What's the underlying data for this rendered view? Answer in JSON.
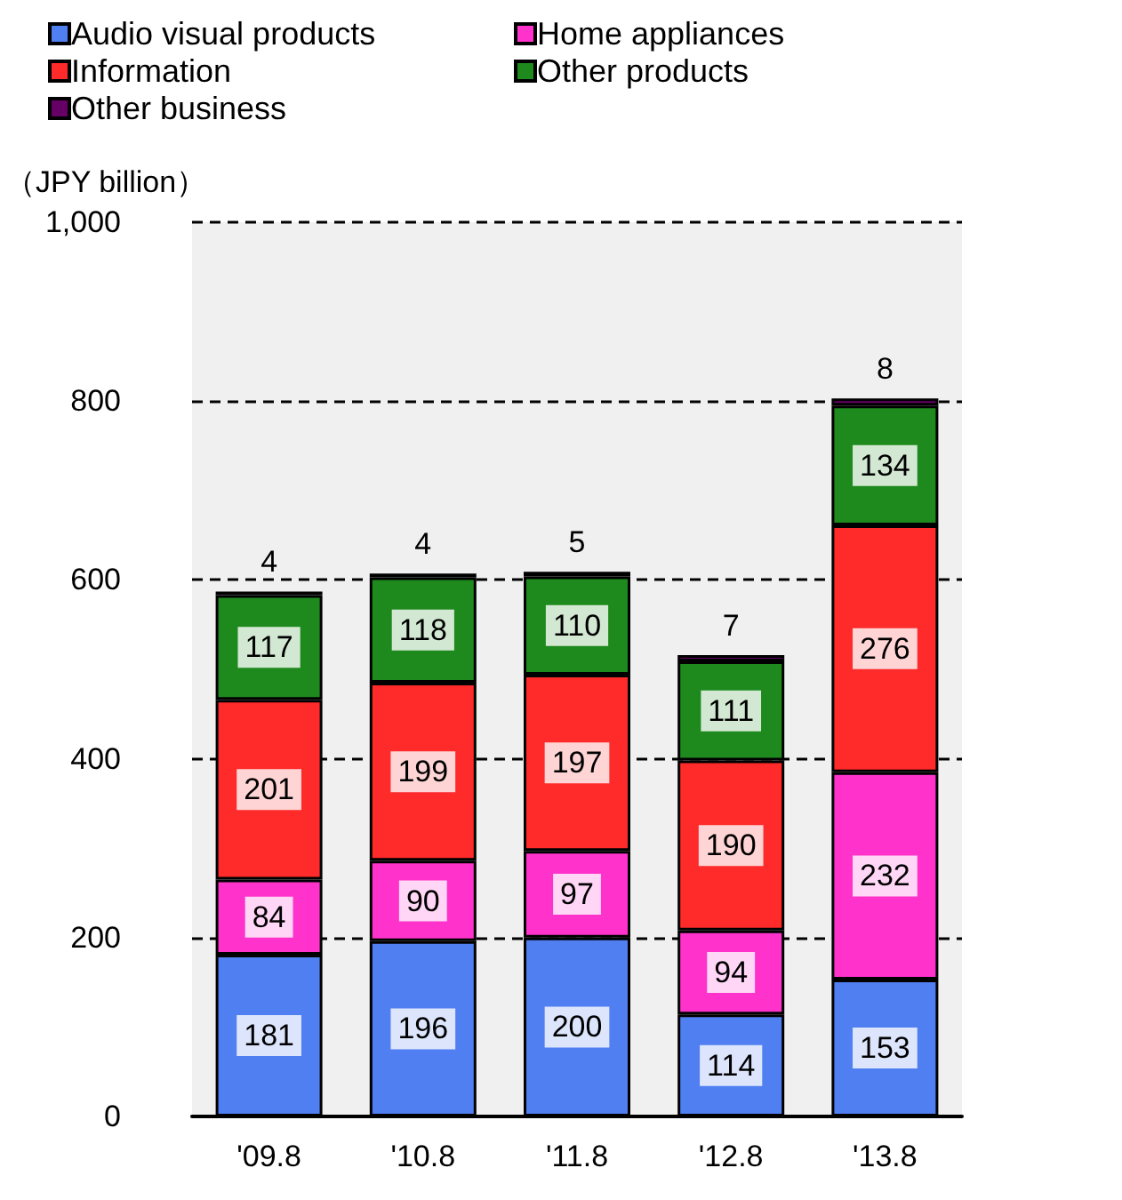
{
  "chart_data": {
    "type": "bar",
    "stacked": true,
    "ylabel": "（JPY billion）",
    "categories": [
      "'09.8",
      "'10.8",
      "'11.8",
      "'12.8",
      "'13.8"
    ],
    "series": [
      {
        "name": "Audio visual products",
        "color": "#4f7ff0",
        "values": [
          181,
          196,
          200,
          114,
          153
        ]
      },
      {
        "name": "Home appliances",
        "color": "#ff33cc",
        "values": [
          84,
          90,
          97,
          94,
          232
        ]
      },
      {
        "name": "Information",
        "color": "#ff2a2a",
        "values": [
          201,
          199,
          197,
          190,
          276
        ]
      },
      {
        "name": "Other products",
        "color": "#1e8a1e",
        "values": [
          117,
          118,
          110,
          111,
          134
        ]
      },
      {
        "name": "Other business",
        "color": "#660066",
        "values": [
          4,
          4,
          5,
          7,
          8
        ]
      }
    ],
    "ylim": [
      0,
      1000
    ],
    "yticks": [
      0,
      200,
      400,
      600,
      800,
      {
        "value": 1000,
        "label": "1,000"
      }
    ],
    "grid": "y",
    "legend": "top left",
    "data_labels": true
  }
}
